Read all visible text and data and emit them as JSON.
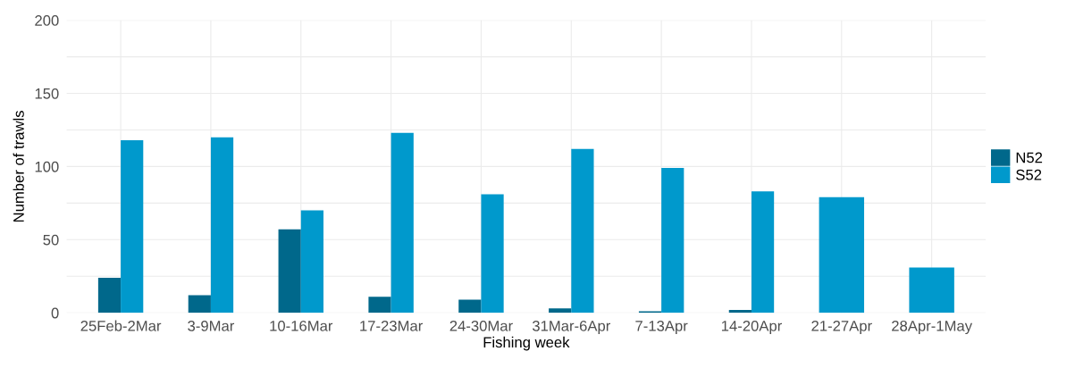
{
  "chart_data": {
    "type": "bar",
    "xlabel": "Fishing week",
    "ylabel": "Number of trawls",
    "categories": [
      "25Feb-2Mar",
      "3-9Mar",
      "10-16Mar",
      "17-23Mar",
      "24-30Mar",
      "31Mar-6Apr",
      "7-13Apr",
      "14-20Apr",
      "21-27Apr",
      "28Apr-1May"
    ],
    "series": [
      {
        "name": "N52",
        "color": "#00688b",
        "values": [
          24,
          12,
          57,
          11,
          9,
          3,
          1,
          2,
          null,
          null
        ]
      },
      {
        "name": "S52",
        "color": "#0099cc",
        "values": [
          118,
          120,
          70,
          123,
          81,
          112,
          99,
          83,
          79,
          31
        ]
      }
    ],
    "ylim": [
      0,
      200
    ],
    "yticks": [
      0,
      {
        "value": 25,
        "label": null
      },
      50,
      {
        "value": 75,
        "label": null
      },
      100,
      {
        "value": 125,
        "label": null
      },
      150,
      {
        "value": 175,
        "label": null
      },
      200
    ],
    "grid": true,
    "legend": "right"
  }
}
